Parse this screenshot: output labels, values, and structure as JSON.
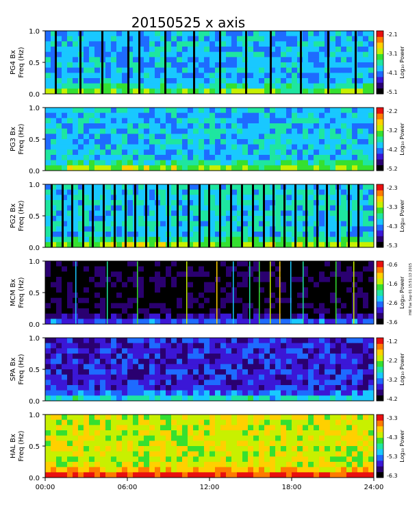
{
  "title": "20150525 x axis",
  "side_note": "HW Tue Sep 01 15:51:13 2015",
  "colorbar_label": "Log₁₀ Power",
  "freq_label": "Freq (Hz)",
  "colormap": [
    "#000000",
    "#2a0070",
    "#3b17d6",
    "#1e6bff",
    "#19c8ff",
    "#1ee6a0",
    "#35e030",
    "#c8f000",
    "#ffd000",
    "#ff7a00",
    "#e8100f"
  ],
  "chart_data": [
    {
      "type": "heatmap",
      "station": "PG4",
      "component": "Bx",
      "station_label": "PG4 Bx",
      "ylabel": "Freq (Hz)",
      "ylim": [
        0,
        1
      ],
      "ytick_labels": [
        "0.0",
        "0.5",
        "1.0"
      ],
      "colorbar": {
        "label": "Log₁₀ Power",
        "min": -5.1,
        "max": -2.1,
        "tick_labels": [
          "-2.1",
          "-3.1",
          "-4.1",
          "-5.1"
        ]
      },
      "level": 0.38,
      "gaps": [
        0.7,
        2.5,
        4.1,
        6.0,
        6.8,
        8.7,
        10.8,
        12.7,
        14.6,
        16.4,
        18.6,
        20.6,
        22.6
      ]
    },
    {
      "type": "heatmap",
      "station": "PG3",
      "component": "Bx",
      "station_label": "PG3 Bx",
      "ylabel": "Freq (Hz)",
      "ylim": [
        0,
        1
      ],
      "ytick_labels": [
        "0.0",
        "0.5",
        "1.0"
      ],
      "colorbar": {
        "label": "Log₁₀ Power",
        "min": -5.2,
        "max": -2.2,
        "tick_labels": [
          "-2.2",
          "-3.2",
          "-4.2",
          "-5.2"
        ]
      },
      "level": 0.4,
      "gaps": []
    },
    {
      "type": "heatmap",
      "station": "PG2",
      "component": "Bx",
      "station_label": "PG2 Bx",
      "ylabel": "Freq (Hz)",
      "ylim": [
        0,
        1
      ],
      "ytick_labels": [
        "0.0",
        "0.5",
        "1.0"
      ],
      "colorbar": {
        "label": "Log₁₀ Power",
        "min": -5.3,
        "max": -2.3,
        "tick_labels": [
          "-2.3",
          "-3.3",
          "-4.3",
          "-5.3"
        ]
      },
      "level": 0.42,
      "gaps": [
        0.4,
        1.2,
        1.9,
        2.7,
        3.4,
        4.2,
        5.0,
        5.8,
        6.5,
        7.3,
        8.1,
        8.9,
        9.6,
        10.4,
        11.2,
        11.9,
        12.7,
        13.5,
        14.3,
        15.1,
        15.9,
        16.6,
        17.4,
        18.2,
        19.0,
        19.8,
        20.5,
        21.3,
        22.1,
        22.8
      ]
    },
    {
      "type": "heatmap",
      "station": "MCM",
      "component": "Bx",
      "station_label": "MCM Bx",
      "ylabel": "Freq (Hz)",
      "ylim": [
        0,
        1
      ],
      "ytick_labels": [
        "0.0",
        "0.5",
        "1.0"
      ],
      "colorbar": {
        "label": "Log₁₀ Power",
        "min": -3.6,
        "max": -0.6,
        "tick_labels": [
          "-0.6",
          "-1.6",
          "-2.6",
          "-3.6"
        ]
      },
      "level": 0.02,
      "spikes": [
        2.2,
        4.5,
        6.7,
        10.3,
        12.5,
        13.7,
        14.9,
        15.6,
        16.4,
        17.1,
        17.9,
        18.8,
        21.2,
        22.5
      ]
    },
    {
      "type": "heatmap",
      "station": "SPA",
      "component": "Bx",
      "station_label": "SPA Bx",
      "ylabel": "Freq (Hz)",
      "ylim": [
        0,
        1
      ],
      "ytick_labels": [
        "0.0",
        "0.5",
        "1.0"
      ],
      "colorbar": {
        "label": "Log₁₀ Power",
        "min": -4.2,
        "max": -1.2,
        "tick_labels": [
          "-1.2",
          "-2.2",
          "-3.2",
          "-4.2"
        ]
      },
      "level": 0.2,
      "gaps": []
    },
    {
      "type": "heatmap",
      "station": "HAL",
      "component": "Bx",
      "station_label": "HAL Bx",
      "ylabel": "Freq (Hz)",
      "ylim": [
        0,
        1
      ],
      "ytick_labels": [
        "0.0",
        "0.5",
        "1.0"
      ],
      "colorbar": {
        "label": "Log₁₀ Power",
        "min": -6.3,
        "max": -3.3,
        "tick_labels": [
          "-3.3",
          "-4.3",
          "-5.3",
          "-6.3"
        ]
      },
      "level": 0.72,
      "gaps": []
    }
  ],
  "x_axis": {
    "xlim": [
      0,
      24
    ],
    "tick_labels": [
      "00:00",
      "06:00",
      "12:00",
      "18:00",
      "24:00"
    ]
  }
}
